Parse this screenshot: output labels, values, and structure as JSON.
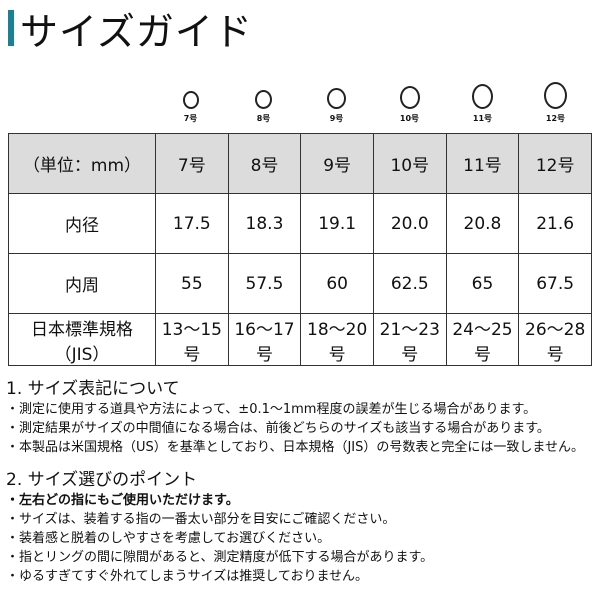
{
  "title": "サイズガイド",
  "accent_color": "#1b7f96",
  "rings": [
    "7号",
    "8号",
    "9号",
    "10号",
    "11号",
    "12号"
  ],
  "table": {
    "header": [
      "（単位：mm）",
      "7号",
      "8号",
      "9号",
      "10号",
      "11号",
      "12号"
    ],
    "rows": [
      {
        "label": "内径",
        "values": [
          "17.5",
          "18.3",
          "19.1",
          "20.0",
          "20.8",
          "21.6"
        ]
      },
      {
        "label": "内周",
        "values": [
          "55",
          "57.5",
          "60",
          "62.5",
          "65",
          "67.5"
        ]
      },
      {
        "label": "日本標準規格（JIS）",
        "values": [
          "13〜15号",
          "16〜17号",
          "18〜20号",
          "21〜23号",
          "24〜25号",
          "26〜28号"
        ]
      }
    ]
  },
  "section1": {
    "heading": "1. サイズ表記について",
    "items": [
      "・測定に使用する道具や方法によって、±0.1〜1mm程度の誤差が生じる場合があります。",
      "・測定結果がサイズの中間値になる場合は、前後どちらのサイズも該当する場合があります。",
      "・本製品は米国規格（US）を基準としており、日本規格（JIS）の号数表と完全には一致しません。"
    ]
  },
  "section2": {
    "heading": "2. サイズ選びのポイント",
    "bold_item": "・左右どの指にもご使用いただけます。",
    "items": [
      "・サイズは、装着する指の一番太い部分を目安にご確認ください。",
      "・装着感と脱着のしやすさを考慮してお選びください。",
      "・指とリングの間に隙間があると、測定精度が低下する場合があります。",
      "・ゆるすぎてすぐ外れてしまうサイズは推奨しておりません。"
    ]
  }
}
